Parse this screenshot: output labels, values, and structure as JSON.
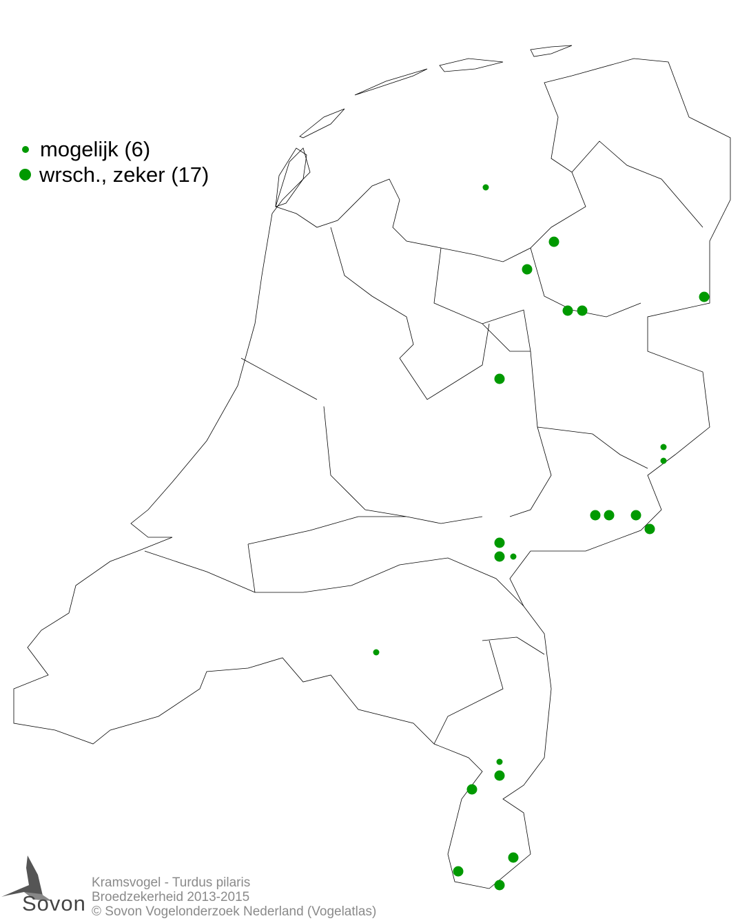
{
  "legend": {
    "items": [
      {
        "label": "mogelijk (6)",
        "size": "small",
        "color": "#009900"
      },
      {
        "label": "wrsch., zeker (17)",
        "size": "large",
        "color": "#009900"
      }
    ]
  },
  "credits": {
    "species": "Kramsvogel - Turdus pilaris",
    "subtitle": "Broedzekerheid 2013-2015",
    "copyright": "© Sovon Vogelonderzoek Nederland (Vogelatlas)"
  },
  "logo": {
    "text": "Sovon"
  },
  "colors": {
    "dot": "#009900",
    "outline": "#000000",
    "credits": "#8a8a8a"
  }
}
